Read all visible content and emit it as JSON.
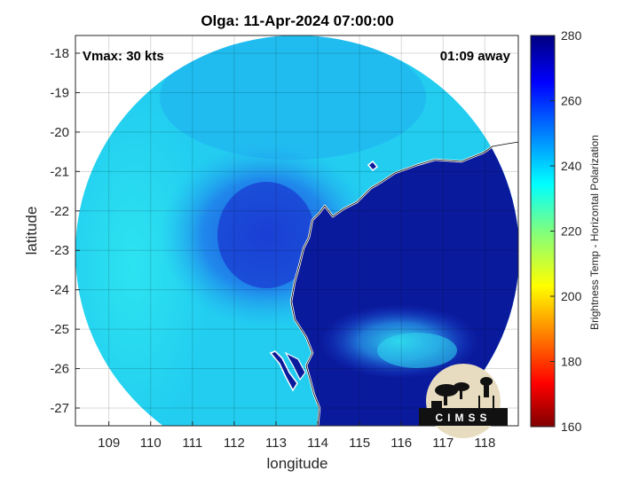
{
  "title": "Olga: 11-Apr-2024 07:00:00",
  "annotations": {
    "vmax": "Vmax: 30 kts",
    "away": "01:09 away"
  },
  "x_axis": {
    "label": "longitude",
    "ticks": [
      "109",
      "110",
      "111",
      "112",
      "113",
      "114",
      "115",
      "116",
      "117",
      "118"
    ],
    "range": [
      108.2,
      118.8
    ]
  },
  "y_axis": {
    "label": "latitude",
    "ticks": [
      "-18",
      "-19",
      "-20",
      "-21",
      "-22",
      "-23",
      "-24",
      "-25",
      "-26",
      "-27"
    ],
    "range": [
      -27.45,
      -17.55
    ]
  },
  "colorbar": {
    "label": "Brightness Temp - Horizontal Polarization",
    "ticks": [
      "280",
      "260",
      "240",
      "220",
      "200",
      "180",
      "160"
    ],
    "range": [
      160,
      280
    ],
    "colormap": "jet"
  },
  "logo": {
    "text": "CIMSS"
  },
  "colors": {
    "background_field": "#22d4f2",
    "land_field": "#0a1a9a",
    "coastline": "#ffffff",
    "storm_core": "#1e4ee0"
  },
  "grid": true
}
